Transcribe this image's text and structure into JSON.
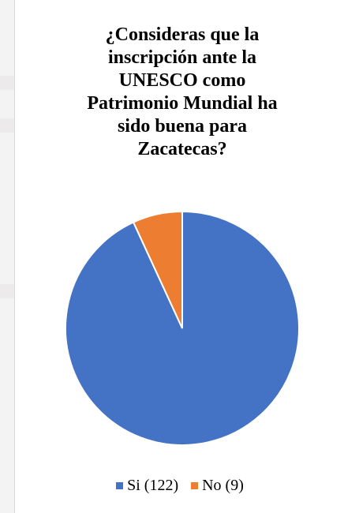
{
  "chart_data": {
    "type": "pie",
    "title": "¿Consideras que la inscripción ante la UNESCO como Patrimonio Mundial ha sido buena para Zacatecas?",
    "title_lines": [
      "¿Consideras que la",
      "inscripción ante la",
      "UNESCO como",
      "Patrimonio Mundial ha",
      "sido buena para",
      "Zacatecas?"
    ],
    "categories": [
      "Si",
      "No"
    ],
    "values": [
      122,
      9
    ],
    "legend_labels": [
      "Si (122)",
      "No (9)"
    ],
    "colors": [
      "#4472c4",
      "#ed7d31"
    ],
    "legend_position": "bottom",
    "start_angle": "12 o'clock, clockwise"
  }
}
